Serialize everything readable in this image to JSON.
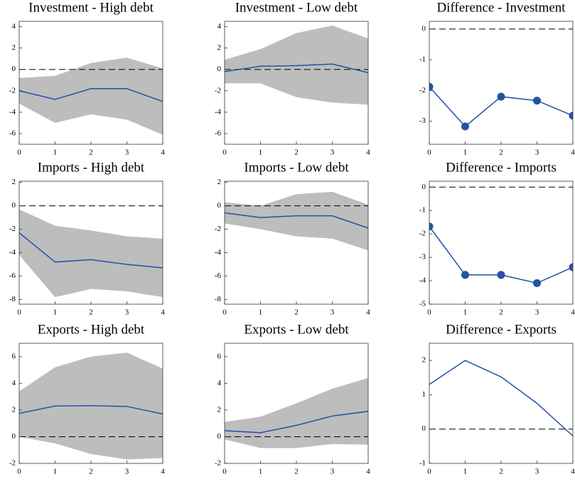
{
  "chart_data": [
    {
      "type": "line",
      "title": "Investment - High debt",
      "x": [
        0,
        1,
        2,
        3,
        4
      ],
      "xlim": [
        0,
        4
      ],
      "xticks": [
        0,
        1,
        2,
        3,
        4
      ],
      "ylim": [
        -7,
        4.5
      ],
      "yticks": [
        -6,
        -4,
        -2,
        0,
        2,
        4
      ],
      "zero_line": {
        "value": 0,
        "style": "dashed"
      },
      "band": {
        "color": "#bdbdbe",
        "upper": [
          -0.8,
          -0.6,
          0.6,
          1.1,
          0.1
        ],
        "lower": [
          -3.2,
          -5.0,
          -4.2,
          -4.7,
          -6.1
        ]
      },
      "series": [
        {
          "color": "#2452a4",
          "markers": false,
          "values": [
            -2.0,
            -2.8,
            -1.8,
            -1.8,
            -3.0
          ]
        }
      ]
    },
    {
      "type": "line",
      "title": "Investment - Low debt",
      "x": [
        0,
        1,
        2,
        3,
        4
      ],
      "xlim": [
        0,
        4
      ],
      "xticks": [
        0,
        1,
        2,
        3,
        4
      ],
      "ylim": [
        -7,
        4.5
      ],
      "yticks": [
        -6,
        -4,
        -2,
        0,
        2,
        4
      ],
      "zero_line": {
        "value": 0,
        "style": "dashed"
      },
      "band": {
        "color": "#bdbdbe",
        "upper": [
          0.9,
          1.9,
          3.4,
          4.1,
          2.9
        ],
        "lower": [
          -1.3,
          -1.3,
          -2.6,
          -3.1,
          -3.3
        ]
      },
      "series": [
        {
          "color": "#2452a4",
          "markers": false,
          "values": [
            -0.2,
            0.3,
            0.35,
            0.5,
            -0.3
          ]
        }
      ]
    },
    {
      "type": "line",
      "title": "Difference - Investment",
      "x": [
        0,
        1,
        2,
        3,
        4
      ],
      "xlim": [
        0,
        4
      ],
      "xticks": [
        0,
        1,
        2,
        3,
        4
      ],
      "ylim": [
        -3.75,
        0.25
      ],
      "yticks": [
        -3,
        -2,
        -1,
        0
      ],
      "zero_line": {
        "value": 0,
        "style": "dashed"
      },
      "series": [
        {
          "color": "#2452a4",
          "markers": true,
          "values": [
            -1.88,
            -3.17,
            -2.2,
            -2.33,
            -2.82
          ]
        }
      ]
    },
    {
      "type": "line",
      "title": "Imports - High debt",
      "x": [
        0,
        1,
        2,
        3,
        4
      ],
      "xlim": [
        0,
        4
      ],
      "xticks": [
        0,
        1,
        2,
        3,
        4
      ],
      "ylim": [
        -8.4,
        2.1
      ],
      "yticks": [
        -8,
        -6,
        -4,
        -2,
        0,
        2
      ],
      "zero_line": {
        "value": 0,
        "style": "dashed"
      },
      "band": {
        "color": "#bdbdbe",
        "upper": [
          -0.3,
          -1.7,
          -2.1,
          -2.6,
          -2.8
        ],
        "lower": [
          -4.2,
          -7.8,
          -7.1,
          -7.3,
          -7.8
        ]
      },
      "series": [
        {
          "color": "#2452a4",
          "markers": false,
          "values": [
            -2.3,
            -4.8,
            -4.6,
            -5.0,
            -5.3
          ]
        }
      ]
    },
    {
      "type": "line",
      "title": "Imports - Low debt",
      "x": [
        0,
        1,
        2,
        3,
        4
      ],
      "xlim": [
        0,
        4
      ],
      "xticks": [
        0,
        1,
        2,
        3,
        4
      ],
      "ylim": [
        -8.4,
        2.1
      ],
      "yticks": [
        -8,
        -6,
        -4,
        -2,
        0,
        2
      ],
      "zero_line": {
        "value": 0,
        "style": "dashed"
      },
      "band": {
        "color": "#bdbdbe",
        "upper": [
          0.3,
          0.0,
          1.0,
          1.2,
          0.1
        ],
        "lower": [
          -1.5,
          -2.0,
          -2.6,
          -2.8,
          -3.8
        ]
      },
      "series": [
        {
          "color": "#2452a4",
          "markers": false,
          "values": [
            -0.6,
            -1.0,
            -0.85,
            -0.85,
            -1.9
          ]
        }
      ]
    },
    {
      "type": "line",
      "title": "Difference - Imports",
      "x": [
        0,
        1,
        2,
        3,
        4
      ],
      "xlim": [
        0,
        4
      ],
      "xticks": [
        0,
        1,
        2,
        3,
        4
      ],
      "ylim": [
        -5,
        0.25
      ],
      "yticks": [
        -5,
        -4,
        -3,
        -2,
        -1,
        0
      ],
      "zero_line": {
        "value": 0,
        "style": "dashed"
      },
      "series": [
        {
          "color": "#2452a4",
          "markers": true,
          "values": [
            -1.68,
            -3.75,
            -3.75,
            -4.1,
            -3.42
          ]
        }
      ]
    },
    {
      "type": "line",
      "title": "Exports - High debt",
      "x": [
        0,
        1,
        2,
        3,
        4
      ],
      "xlim": [
        0,
        4
      ],
      "xticks": [
        0,
        1,
        2,
        3,
        4
      ],
      "ylim": [
        -2,
        7
      ],
      "yticks": [
        -2,
        0,
        2,
        4,
        6
      ],
      "zero_line": {
        "value": 0,
        "style": "dashed"
      },
      "band": {
        "color": "#bdbdbe",
        "upper": [
          3.4,
          5.2,
          6.0,
          6.3,
          5.1
        ],
        "lower": [
          0.0,
          -0.5,
          -1.3,
          -1.7,
          -1.6
        ]
      },
      "series": [
        {
          "color": "#2452a4",
          "markers": false,
          "values": [
            1.75,
            2.3,
            2.32,
            2.27,
            1.7
          ]
        }
      ]
    },
    {
      "type": "line",
      "title": "Exports - Low debt",
      "x": [
        0,
        1,
        2,
        3,
        4
      ],
      "xlim": [
        0,
        4
      ],
      "xticks": [
        0,
        1,
        2,
        3,
        4
      ],
      "ylim": [
        -2,
        7
      ],
      "yticks": [
        -2,
        0,
        2,
        4,
        6
      ],
      "zero_line": {
        "value": 0,
        "style": "dashed"
      },
      "band": {
        "color": "#bdbdbe",
        "upper": [
          1.1,
          1.5,
          2.5,
          3.6,
          4.4
        ],
        "lower": [
          -0.2,
          -0.85,
          -0.85,
          -0.55,
          -0.6
        ]
      },
      "series": [
        {
          "color": "#2452a4",
          "markers": false,
          "values": [
            0.45,
            0.3,
            0.85,
            1.55,
            1.9
          ]
        }
      ]
    },
    {
      "type": "line",
      "title": "Difference - Exports",
      "x": [
        0,
        1,
        2,
        3,
        4
      ],
      "xlim": [
        0,
        4
      ],
      "xticks": [
        0,
        1,
        2,
        3,
        4
      ],
      "ylim": [
        -1,
        2.5
      ],
      "yticks": [
        -1,
        0,
        1,
        2
      ],
      "zero_line": {
        "value": 0,
        "style": "dashed"
      },
      "series": [
        {
          "color": "#2452a4",
          "markers": false,
          "values": [
            1.3,
            2.0,
            1.52,
            0.75,
            -0.2
          ]
        }
      ]
    }
  ]
}
